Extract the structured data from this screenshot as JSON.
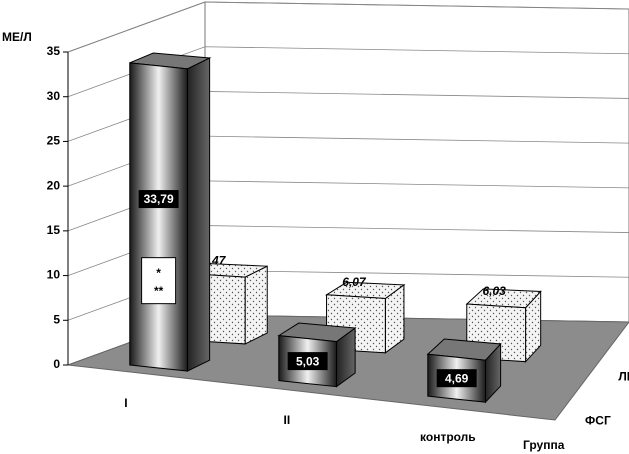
{
  "chart_data": {
    "type": "bar3d",
    "y_label": "МЕ/Л",
    "z_label": "Группа",
    "categories": [
      "I",
      "II",
      "контроль"
    ],
    "series": [
      {
        "name": "ФСГ",
        "color": "#4a4a4a",
        "values": [
          33.79,
          5.03,
          4.69
        ],
        "value_labels": [
          "33,79",
          "5,03",
          "4,69"
        ]
      },
      {
        "name": "ЛГ",
        "color": "#f4f4f4",
        "values": [
          7.47,
          6.07,
          6.03
        ],
        "value_labels": [
          "7,47",
          "6,07",
          "6,03"
        ]
      }
    ],
    "annotations": [
      "*",
      "**"
    ],
    "ylim": [
      0,
      35
    ],
    "yticks": [
      0,
      5,
      10,
      15,
      20,
      25,
      30,
      35
    ],
    "grid": true
  }
}
